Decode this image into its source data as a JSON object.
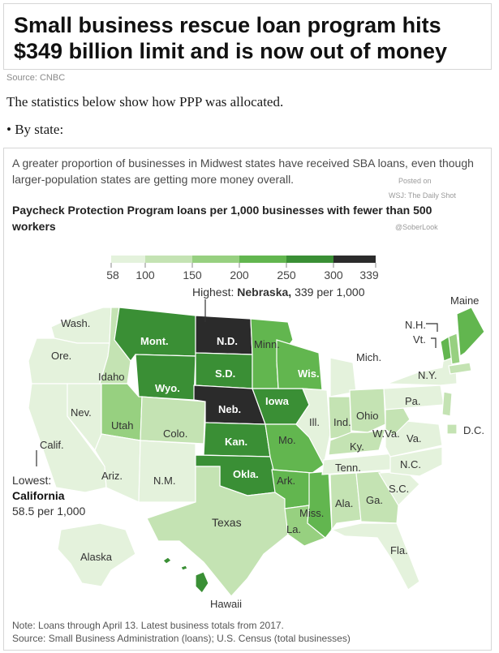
{
  "headline": "Small business rescue loan program hits $349 billion limit and is now out of money",
  "source": "Source: CNBC",
  "intro": "The statistics below show how PPP was allocated.",
  "bullet": "• By state:",
  "figure": {
    "subtitle": "A greater proportion of businesses in Midwest states have received SBA loans, even though larger-population states are getting more money overall.",
    "watermark_posted": "Posted on",
    "watermark_wsj": "WSJ: The Daily Shot",
    "watermark_handle": "@SoberLook",
    "title": "Paycheck Protection Program loans per 1,000 businesses with fewer than 500 workers",
    "legend_ticks": [
      "58",
      "100",
      "150",
      "200",
      "250",
      "300",
      "339"
    ],
    "legend_colors": [
      "#e4f2dc",
      "#c4e3b3",
      "#97d080",
      "#62b64f",
      "#3a8f35",
      "#2b2b2b"
    ],
    "highest_callout": {
      "prefix": "Highest: ",
      "state": "Nebraska,",
      "value": "339 per 1,000"
    },
    "lowest_callout": {
      "label": "Lowest:",
      "state": "California",
      "value": "58.5 per 1,000"
    },
    "note": "Note: Loans through April 13. Latest business totals from 2017.",
    "sources": "Source: Small Business Administration (loans); U.S. Census (total businesses)"
  },
  "state_labels": {
    "wash": "Wash.",
    "ore": "Ore.",
    "idaho": "Idaho",
    "nev": "Nev.",
    "calif": "Calif.",
    "mont": "Mont.",
    "wyo": "Wyo.",
    "utah": "Utah",
    "colo": "Colo.",
    "ariz": "Ariz.",
    "nm": "N.M.",
    "nd": "N.D.",
    "sd": "S.D.",
    "neb": "Neb.",
    "kan": "Kan.",
    "okla": "Okla.",
    "texas": "Texas",
    "minn": "Minn.",
    "iowa": "Iowa",
    "mo": "Mo.",
    "ark": "Ark.",
    "la": "La.",
    "wis": "Wis.",
    "ill": "Ill.",
    "miss": "Miss.",
    "mich": "Mich.",
    "ind": "Ind.",
    "ky": "Ky.",
    "tenn": "Tenn.",
    "ala": "Ala.",
    "ohio": "Ohio",
    "ga": "Ga.",
    "fla": "Fla.",
    "wva": "W.Va.",
    "va": "Va.",
    "pa": "Pa.",
    "ny": "N.Y.",
    "nc": "N.C.",
    "sc": "S.C.",
    "maine": "Maine",
    "nh": "N.H.",
    "vt": "Vt.",
    "dc": "D.C.",
    "alaska": "Alaska",
    "hawaii": "Hawaii"
  },
  "chart_data": {
    "type": "choropleth",
    "metric": "PPP loans per 1,000 businesses with fewer than 500 workers",
    "legend_range": [
      58,
      339
    ],
    "legend_breaks": [
      58,
      100,
      150,
      200,
      250,
      300,
      339
    ],
    "highlighted": [
      {
        "state": "Nebraska",
        "value": 339
      },
      {
        "state": "California",
        "value": 58.5
      }
    ]
  }
}
